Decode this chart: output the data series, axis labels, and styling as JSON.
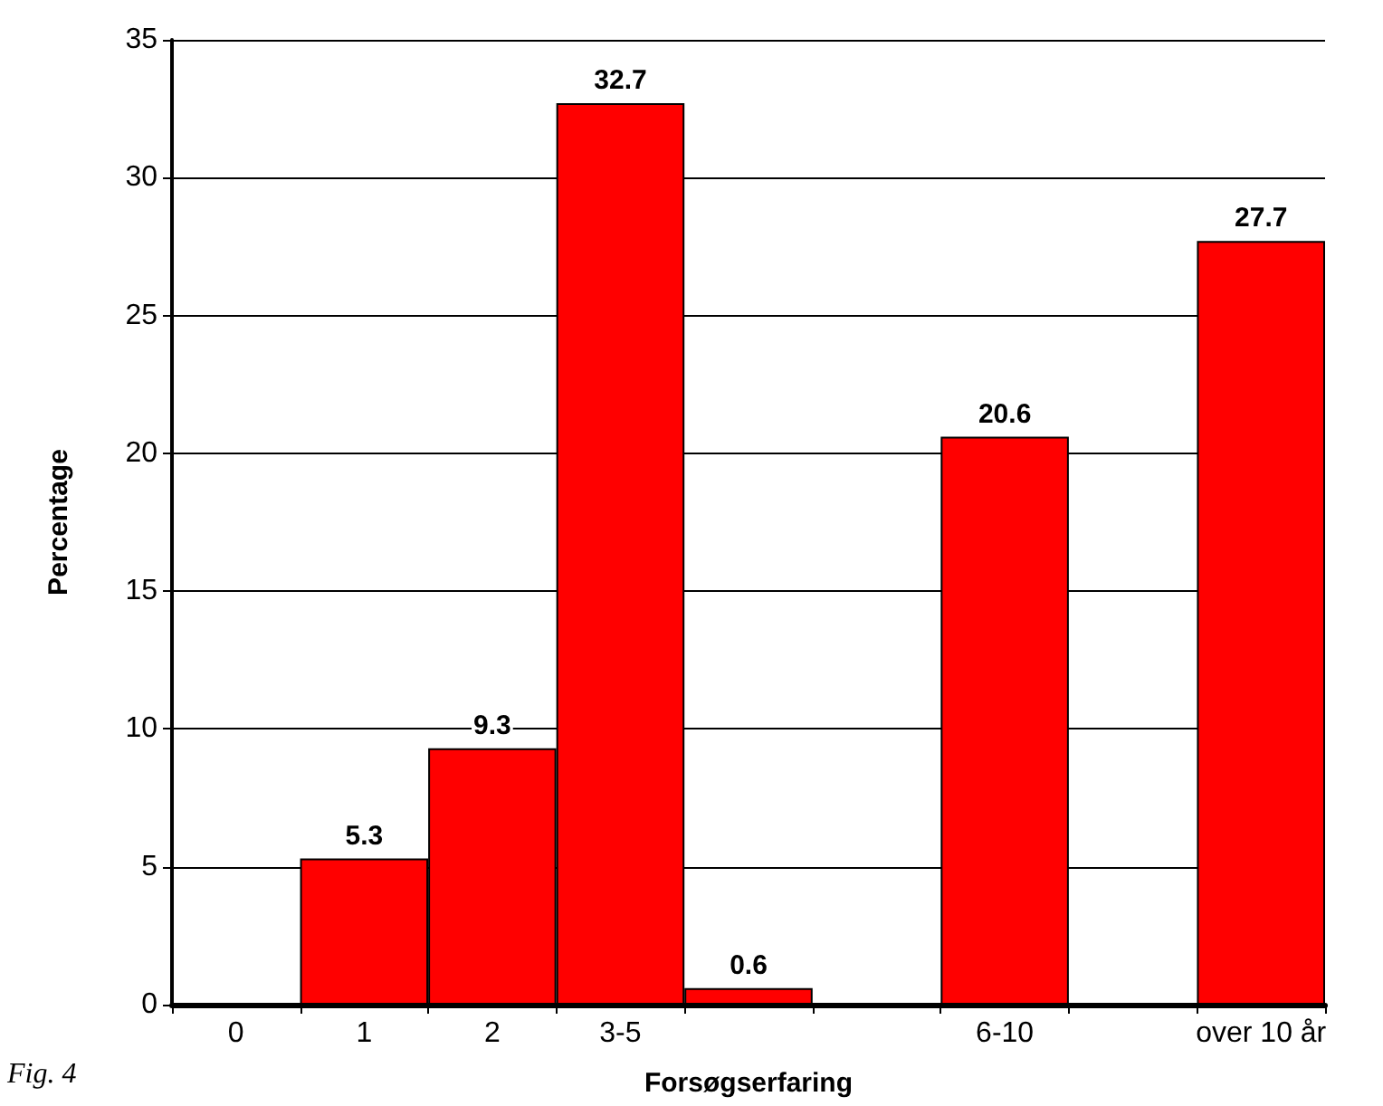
{
  "chart_data": {
    "type": "bar",
    "xlabel": "Forsøgserfaring",
    "ylabel": "Percentage",
    "categories": [
      "0",
      "1",
      "2",
      "3-5",
      null,
      null,
      "6-10",
      null,
      "over 10 år"
    ],
    "values": [
      null,
      5.3,
      9.3,
      32.7,
      0.6,
      null,
      20.6,
      null,
      27.7
    ],
    "value_labels": [
      null,
      "5.3",
      "9.3",
      "32.7",
      "0.6",
      null,
      "20.6",
      null,
      "27.7"
    ],
    "color": "#ff0000",
    "ylim": [
      0,
      35
    ],
    "yticks": [
      0,
      5,
      10,
      15,
      20,
      25,
      30,
      35
    ],
    "grid": "y",
    "annotations": [
      "Fig. 4"
    ]
  }
}
